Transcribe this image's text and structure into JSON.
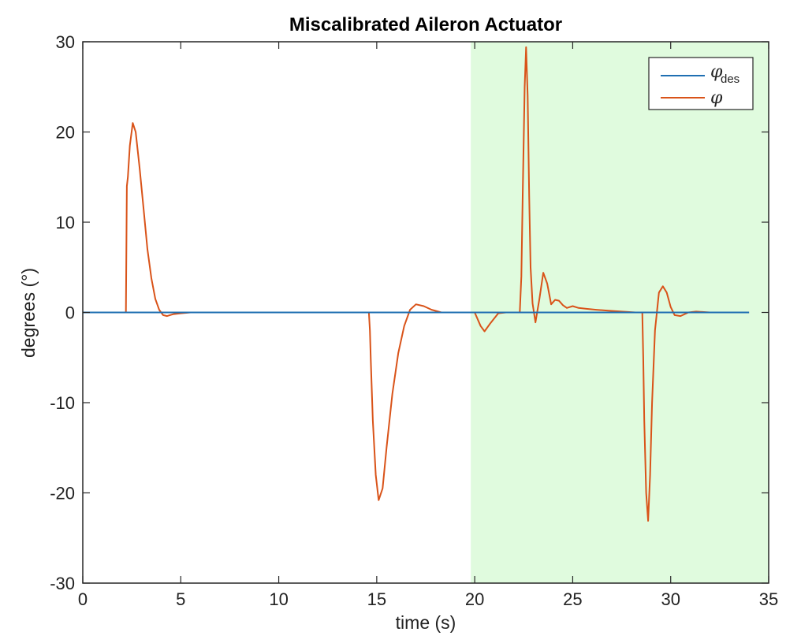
{
  "chart_data": {
    "type": "line",
    "title": "Miscalibrated Aileron Actuator",
    "xlabel": "time (s)",
    "ylabel": "degrees (°)",
    "xlim": [
      0,
      35
    ],
    "ylim": [
      -30,
      30
    ],
    "xticks": [
      0,
      5,
      10,
      15,
      20,
      25,
      30,
      35
    ],
    "yticks": [
      -30,
      -20,
      -10,
      0,
      10,
      20,
      30
    ],
    "grid": false,
    "legend_position": "top-right",
    "highlight_region": {
      "x_start": 19.8,
      "x_end": 35,
      "color": "#e0fbde"
    },
    "series": [
      {
        "name": "φdes",
        "color": "#1f6fb2",
        "x": [
          0,
          34
        ],
        "y": [
          0,
          0
        ]
      },
      {
        "name": "φ",
        "color": "#d95319",
        "x": [
          0,
          2.2,
          2.25,
          2.3,
          2.4,
          2.55,
          2.7,
          2.9,
          3.1,
          3.3,
          3.5,
          3.7,
          3.9,
          4.1,
          4.3,
          4.6,
          5.0,
          5.5,
          6,
          10,
          14.6,
          14.65,
          14.7,
          14.8,
          14.95,
          15.1,
          15.3,
          15.5,
          15.8,
          16.1,
          16.4,
          16.7,
          17.0,
          17.4,
          17.8,
          18.3,
          18.8,
          19.5,
          20.0,
          20.1,
          20.3,
          20.5,
          20.8,
          21.2,
          21.6,
          22.0,
          22.3,
          22.38,
          22.45,
          22.55,
          22.62,
          22.7,
          22.78,
          22.85,
          22.95,
          23.1,
          23.3,
          23.5,
          23.7,
          23.9,
          24.1,
          24.3,
          24.5,
          24.7,
          25.0,
          25.3,
          25.7,
          26.2,
          26.8,
          27.5,
          28.2,
          28.55,
          28.6,
          28.65,
          28.75,
          28.85,
          28.95,
          29.05,
          29.2,
          29.4,
          29.6,
          29.8,
          30.0,
          30.2,
          30.5,
          30.9,
          31.3,
          32,
          33,
          34
        ],
        "y": [
          0,
          0,
          14,
          15,
          18.5,
          21,
          20,
          16,
          11.5,
          7,
          3.8,
          1.5,
          0.3,
          -0.3,
          -0.4,
          -0.2,
          -0.1,
          0,
          0,
          0,
          0,
          -2,
          -5.5,
          -12,
          -18,
          -20.8,
          -19.5,
          -15,
          -9,
          -4.5,
          -1.5,
          0.3,
          0.9,
          0.7,
          0.3,
          0,
          0,
          0,
          0,
          -0.5,
          -1.5,
          -2.1,
          -1.2,
          -0.1,
          0,
          0,
          0,
          4,
          13,
          25,
          29.4,
          24,
          13,
          5,
          1,
          -1.1,
          1.5,
          4.4,
          3.2,
          0.9,
          1.4,
          1.3,
          0.8,
          0.5,
          0.7,
          0.5,
          0.4,
          0.3,
          0.2,
          0.1,
          0,
          0,
          -5,
          -12,
          -20,
          -23.1,
          -18,
          -10,
          -2,
          2.2,
          2.9,
          2.2,
          0.6,
          -0.3,
          -0.4,
          0,
          0.1,
          0,
          0,
          0
        ]
      }
    ]
  }
}
